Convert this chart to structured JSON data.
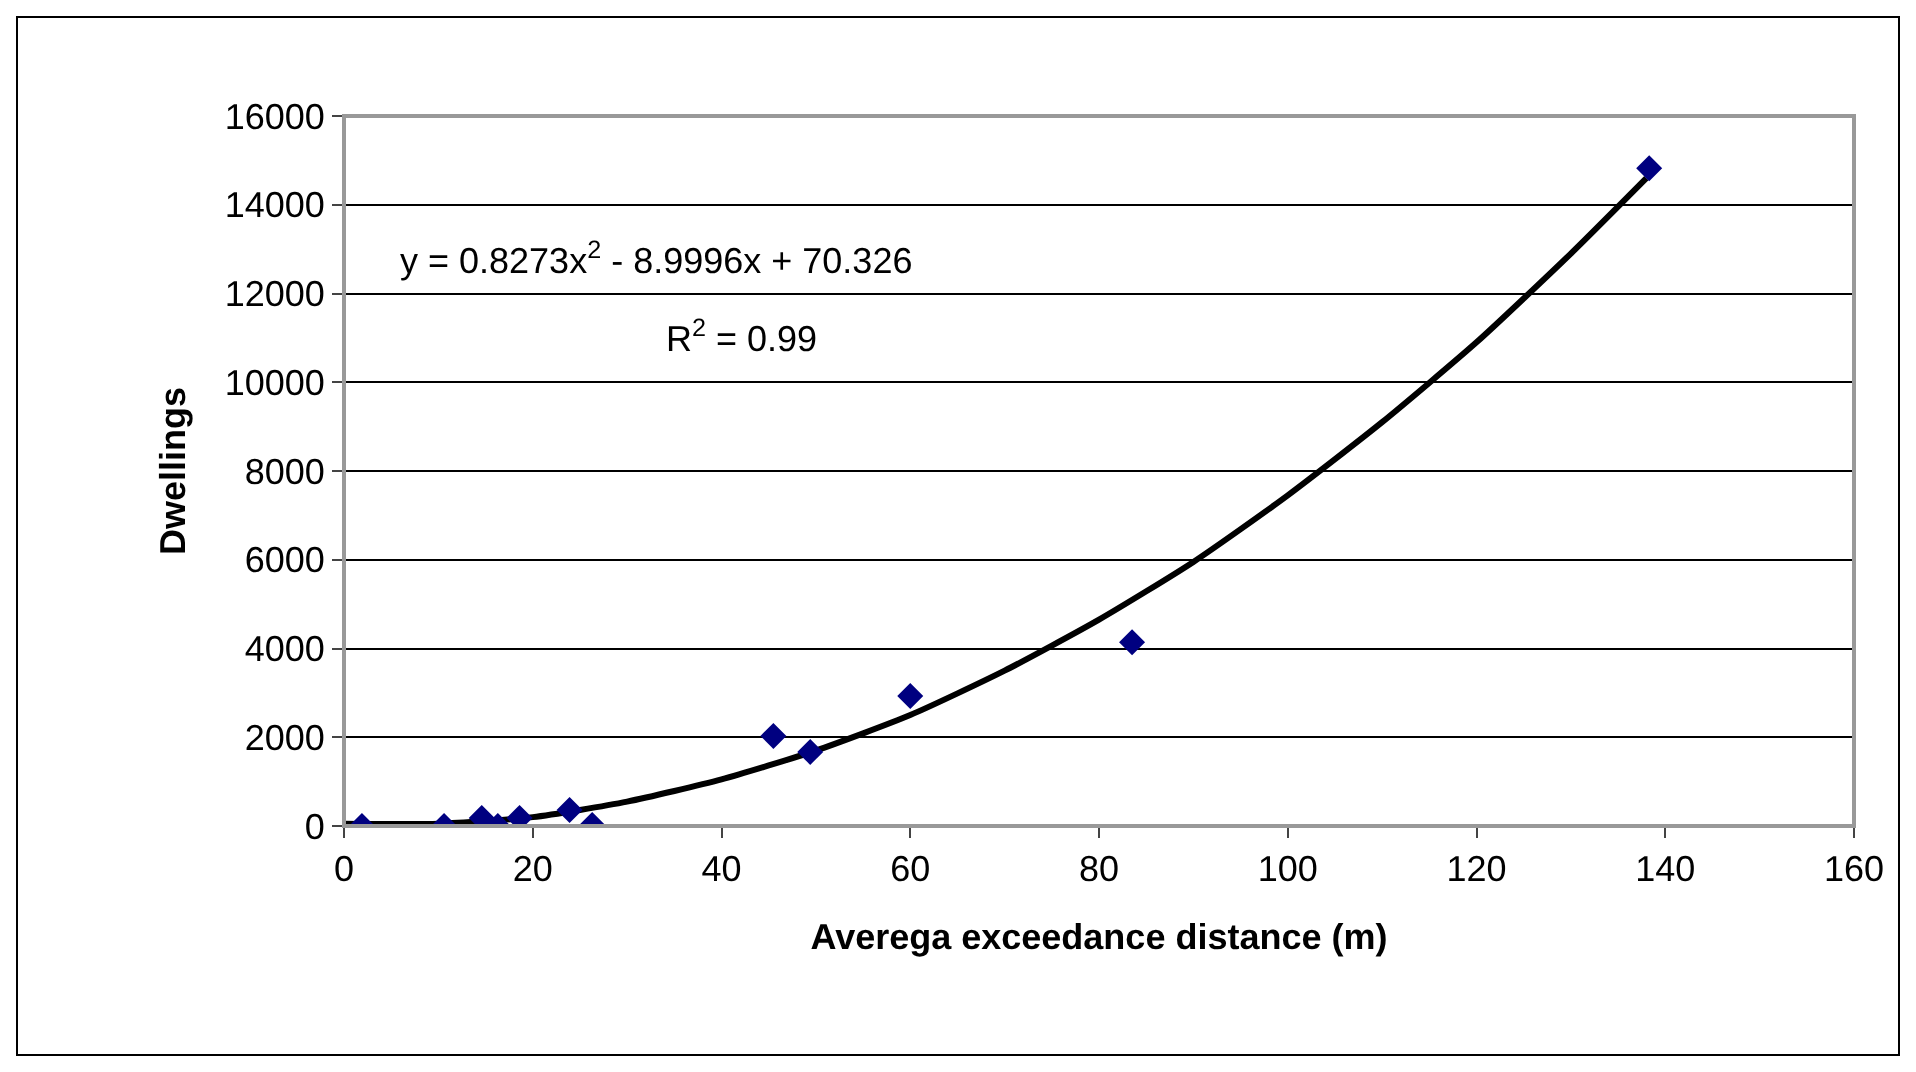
{
  "chart_data": {
    "type": "scatter",
    "xlabel": "Averega exceedance distance (m)",
    "ylabel": "Dwellings",
    "xlim": [
      0,
      160
    ],
    "xticks": [
      0,
      20,
      40,
      60,
      80,
      100,
      120,
      140,
      160
    ],
    "ylim": [
      0,
      16000
    ],
    "yticks": [
      0,
      2000,
      4000,
      6000,
      8000,
      10000,
      12000,
      14000,
      16000
    ],
    "grid": "y",
    "marker": "diamond",
    "annotations": [
      "y = 0.8273x$^{2}$ - 8.9996x + 70.326",
      "R$^{2}$ = 0.99"
    ],
    "series": [
      {
        "color": "#000080",
        "x": [
          1.9,
          10.6,
          14.6,
          16.3,
          18.6,
          23.9,
          26.3,
          45.5,
          49.4,
          60,
          83.5,
          138.3
        ],
        "values": [
          0,
          0,
          180,
          0,
          180,
          360,
          20,
          2030,
          1670,
          2930,
          4140,
          14820
        ]
      },
      {
        "type": "line",
        "color": "#000000",
        "marker": "none",
        "line_style": "solid",
        "x": [
          0,
          10,
          20,
          30,
          40,
          50,
          60,
          70,
          80,
          90,
          100,
          110,
          120,
          130,
          138
        ],
        "values": [
          50,
          50,
          200,
          550,
          1050,
          1700,
          2500,
          3500,
          4650,
          5950,
          7450,
          9100,
          10900,
          12900,
          14600
        ]
      }
    ]
  }
}
